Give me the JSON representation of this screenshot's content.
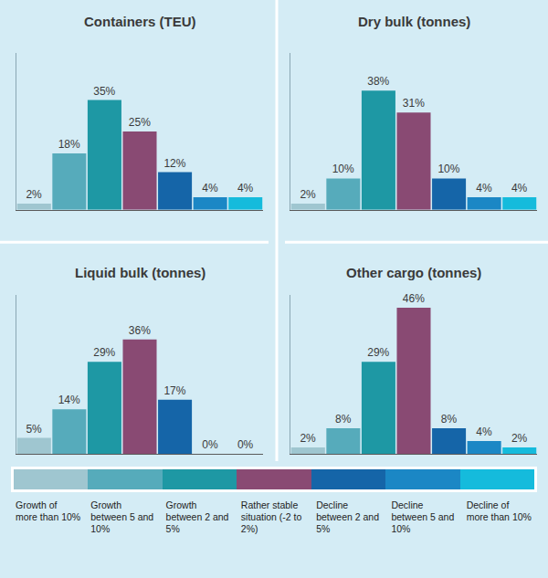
{
  "chart_data": [
    {
      "type": "bar",
      "title": "Containers (TEU)",
      "categories": [
        "Growth of more than 10%",
        "Growth between 5 and 10%",
        "Growth between 2 and 5%",
        "Rather stable situation (-2 to 2%)",
        "Decline between 2 and 5%",
        "Decline between 5 and 10%",
        "Decline of more than 10%"
      ],
      "values": [
        2,
        18,
        35,
        25,
        12,
        4,
        4
      ],
      "value_labels": [
        "2%",
        "18%",
        "35%",
        "25%",
        "12%",
        "4%",
        "4%"
      ],
      "colors": [
        "#9fc6d0",
        "#56abbb",
        "#1e98a4",
        "#894a73",
        "#1565a8",
        "#1b87c5",
        "#15bbdc"
      ],
      "ylim": [
        0,
        50
      ],
      "grid": false,
      "data_labels": true,
      "tick_labels": false,
      "legend": "bottom"
    },
    {
      "type": "bar",
      "title": "Dry bulk (tonnes)",
      "categories": [
        "Growth of more than 10%",
        "Growth between 5 and 10%",
        "Growth between 2 and 5%",
        "Rather stable situation (-2 to 2%)",
        "Decline between 2 and 5%",
        "Decline between 5 and 10%",
        "Decline of more than 10%"
      ],
      "values": [
        2,
        10,
        38,
        31,
        10,
        4,
        4
      ],
      "value_labels": [
        "2%",
        "10%",
        "38%",
        "31%",
        "10%",
        "4%",
        "4%"
      ],
      "colors": [
        "#9fc6d0",
        "#56abbb",
        "#1e98a4",
        "#894a73",
        "#1565a8",
        "#1b87c5",
        "#15bbdc"
      ],
      "ylim": [
        0,
        50
      ],
      "grid": false,
      "data_labels": true,
      "tick_labels": false,
      "legend": "bottom"
    },
    {
      "type": "bar",
      "title": "Liquid bulk (tonnes)",
      "categories": [
        "Growth of more than 10%",
        "Growth between 5 and 10%",
        "Growth between 2 and 5%",
        "Rather stable situation (-2 to 2%)",
        "Decline between 2 and 5%",
        "Decline between 5 and 10%",
        "Decline of more than 10%"
      ],
      "values": [
        5,
        14,
        29,
        36,
        17,
        0,
        0
      ],
      "value_labels": [
        "5%",
        "14%",
        "29%",
        "36%",
        "17%",
        "0%",
        "0%"
      ],
      "colors": [
        "#9fc6d0",
        "#56abbb",
        "#1e98a4",
        "#894a73",
        "#1565a8",
        "#1b87c5",
        "#15bbdc"
      ],
      "ylim": [
        0,
        50
      ],
      "grid": false,
      "data_labels": true,
      "tick_labels": false,
      "legend": "bottom"
    },
    {
      "type": "bar",
      "title": "Other cargo (tonnes)",
      "categories": [
        "Growth of more than 10%",
        "Growth between 5 and 10%",
        "Growth between 2 and 5%",
        "Rather stable situation (-2 to 2%)",
        "Decline between 2 and 5%",
        "Decline between 5 and 10%",
        "Decline of more than 10%"
      ],
      "values": [
        2,
        8,
        29,
        46,
        8,
        4,
        2
      ],
      "value_labels": [
        "2%",
        "8%",
        "29%",
        "46%",
        "8%",
        "4%",
        "2%"
      ],
      "colors": [
        "#9fc6d0",
        "#56abbb",
        "#1e98a4",
        "#894a73",
        "#1565a8",
        "#1b87c5",
        "#15bbdc"
      ],
      "ylim": [
        0,
        50
      ],
      "grid": false,
      "data_labels": true,
      "tick_labels": false,
      "legend": "bottom"
    }
  ]
}
